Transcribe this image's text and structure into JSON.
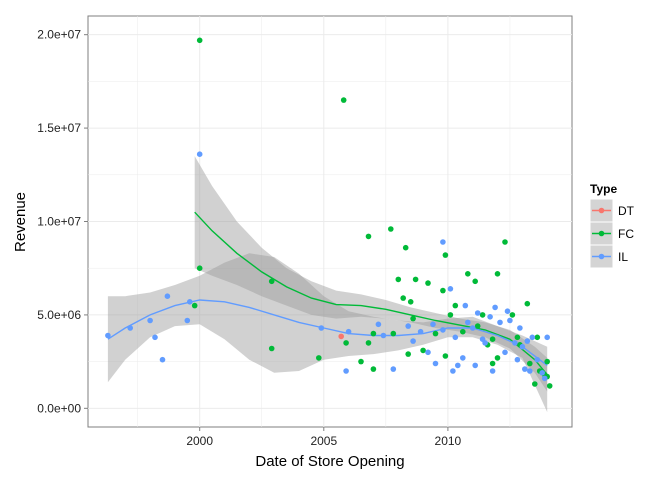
{
  "chart_data": {
    "type": "scatter",
    "title": "",
    "xlabel": "Date of Store Opening",
    "ylabel": "Revenue",
    "xlim": [
      1995.5,
      2015.0
    ],
    "ylim": [
      -1000000,
      21000000
    ],
    "x_ticks": [
      2000,
      2005,
      2010
    ],
    "x_tick_labels": [
      "2000",
      "2005",
      "2010"
    ],
    "y_ticks": [
      0,
      5000000,
      10000000,
      15000000,
      20000000
    ],
    "y_tick_labels": [
      "0.0e+00",
      "5.0e+06",
      "1.0e+07",
      "1.5e+07",
      "2.0e+07"
    ],
    "grid": true,
    "legend": {
      "title": "Type",
      "placement": "right"
    },
    "smoother": "loess with confidence band",
    "series": [
      {
        "name": "DT",
        "color": "#F8766D",
        "points": [
          [
            2005.7,
            3850000
          ]
        ],
        "trend": [],
        "band_upper": [],
        "band_lower": []
      },
      {
        "name": "FC",
        "color": "#00BA38",
        "points": [
          [
            2000.0,
            19700000
          ],
          [
            2000.0,
            7500000
          ],
          [
            1999.8,
            5500000
          ],
          [
            2002.9,
            6800000
          ],
          [
            2002.9,
            3200000
          ],
          [
            2004.8,
            2700000
          ],
          [
            2005.8,
            16500000
          ],
          [
            2005.9,
            3500000
          ],
          [
            2006.5,
            2500000
          ],
          [
            2006.8,
            9200000
          ],
          [
            2006.8,
            3500000
          ],
          [
            2007.0,
            4000000
          ],
          [
            2007.0,
            2100000
          ],
          [
            2007.7,
            9600000
          ],
          [
            2007.8,
            4000000
          ],
          [
            2008.0,
            6900000
          ],
          [
            2008.2,
            5900000
          ],
          [
            2008.3,
            8600000
          ],
          [
            2008.4,
            2900000
          ],
          [
            2008.5,
            5700000
          ],
          [
            2008.6,
            4800000
          ],
          [
            2008.7,
            6900000
          ],
          [
            2009.0,
            3100000
          ],
          [
            2009.2,
            6700000
          ],
          [
            2009.5,
            4000000
          ],
          [
            2009.8,
            6300000
          ],
          [
            2009.9,
            2800000
          ],
          [
            2009.9,
            8200000
          ],
          [
            2010.1,
            5000000
          ],
          [
            2010.3,
            5500000
          ],
          [
            2010.6,
            4100000
          ],
          [
            2010.8,
            7200000
          ],
          [
            2011.1,
            6800000
          ],
          [
            2011.2,
            4400000
          ],
          [
            2011.4,
            5000000
          ],
          [
            2011.6,
            3400000
          ],
          [
            2011.8,
            2400000
          ],
          [
            2011.8,
            3700000
          ],
          [
            2012.0,
            7200000
          ],
          [
            2012.0,
            2700000
          ],
          [
            2012.3,
            8900000
          ],
          [
            2012.6,
            5000000
          ],
          [
            2012.8,
            3800000
          ],
          [
            2012.9,
            3400000
          ],
          [
            2013.2,
            5600000
          ],
          [
            2013.3,
            2400000
          ],
          [
            2013.5,
            1300000
          ],
          [
            2013.6,
            3800000
          ],
          [
            2013.7,
            2000000
          ],
          [
            2013.9,
            1800000
          ],
          [
            2014.0,
            1700000
          ],
          [
            2014.1,
            1200000
          ],
          [
            2014.0,
            2500000
          ]
        ],
        "trend": [
          [
            1999.8,
            10500000
          ],
          [
            2000.5,
            9500000
          ],
          [
            2001.5,
            8300000
          ],
          [
            2002.5,
            7300000
          ],
          [
            2003.5,
            6500000
          ],
          [
            2004.5,
            5900000
          ],
          [
            2005.5,
            5550000
          ],
          [
            2006.5,
            5500000
          ],
          [
            2007.5,
            5300000
          ],
          [
            2008.5,
            5000000
          ],
          [
            2009.5,
            4700000
          ],
          [
            2010.5,
            4450000
          ],
          [
            2011.5,
            4200000
          ],
          [
            2012.5,
            3700000
          ],
          [
            2013.5,
            2600000
          ],
          [
            2014.0,
            1800000
          ]
        ],
        "band_upper": [
          [
            1999.8,
            13500000
          ],
          [
            2000.5,
            11900000
          ],
          [
            2001.5,
            10000000
          ],
          [
            2002.5,
            8600000
          ],
          [
            2003.5,
            7500000
          ],
          [
            2004.5,
            6800000
          ],
          [
            2005.5,
            6300000
          ],
          [
            2006.5,
            6100000
          ],
          [
            2007.5,
            5800000
          ],
          [
            2008.5,
            5400000
          ],
          [
            2009.5,
            5100000
          ],
          [
            2010.5,
            4800000
          ],
          [
            2011.5,
            4600000
          ],
          [
            2012.5,
            4200000
          ],
          [
            2013.5,
            3300000
          ],
          [
            2014.0,
            2700000
          ]
        ],
        "band_lower": [
          [
            1999.8,
            7500000
          ],
          [
            2000.5,
            7100000
          ],
          [
            2001.5,
            6600000
          ],
          [
            2002.5,
            6000000
          ],
          [
            2003.5,
            5500000
          ],
          [
            2004.5,
            5000000
          ],
          [
            2005.5,
            4800000
          ],
          [
            2006.5,
            4900000
          ],
          [
            2007.5,
            4800000
          ],
          [
            2008.5,
            4600000
          ],
          [
            2009.5,
            4300000
          ],
          [
            2010.5,
            4100000
          ],
          [
            2011.5,
            3800000
          ],
          [
            2012.5,
            3200000
          ],
          [
            2013.5,
            1900000
          ],
          [
            2014.0,
            900000
          ]
        ]
      },
      {
        "name": "IL",
        "color": "#619CFF",
        "points": [
          [
            1996.3,
            3900000
          ],
          [
            1997.2,
            4300000
          ],
          [
            1998.0,
            4700000
          ],
          [
            1998.2,
            3800000
          ],
          [
            1998.5,
            2600000
          ],
          [
            1998.7,
            6000000
          ],
          [
            1999.5,
            4700000
          ],
          [
            1999.6,
            5700000
          ],
          [
            2000.0,
            13600000
          ],
          [
            2004.9,
            4300000
          ],
          [
            2005.9,
            2000000
          ],
          [
            2006.0,
            4100000
          ],
          [
            2007.2,
            4500000
          ],
          [
            2007.4,
            3900000
          ],
          [
            2007.8,
            2100000
          ],
          [
            2008.4,
            4400000
          ],
          [
            2008.6,
            3600000
          ],
          [
            2008.9,
            4100000
          ],
          [
            2009.2,
            3000000
          ],
          [
            2009.4,
            4500000
          ],
          [
            2009.5,
            2400000
          ],
          [
            2009.8,
            4200000
          ],
          [
            2009.8,
            8900000
          ],
          [
            2010.1,
            6400000
          ],
          [
            2010.2,
            2000000
          ],
          [
            2010.3,
            3800000
          ],
          [
            2010.4,
            2300000
          ],
          [
            2010.6,
            2700000
          ],
          [
            2010.7,
            5500000
          ],
          [
            2010.8,
            4600000
          ],
          [
            2011.0,
            4300000
          ],
          [
            2011.1,
            2300000
          ],
          [
            2011.2,
            5100000
          ],
          [
            2011.4,
            3700000
          ],
          [
            2011.5,
            3500000
          ],
          [
            2011.7,
            4900000
          ],
          [
            2011.8,
            2000000
          ],
          [
            2011.9,
            5400000
          ],
          [
            2012.1,
            4600000
          ],
          [
            2012.3,
            3000000
          ],
          [
            2012.4,
            5200000
          ],
          [
            2012.5,
            4700000
          ],
          [
            2012.7,
            3500000
          ],
          [
            2012.8,
            2600000
          ],
          [
            2012.9,
            4300000
          ],
          [
            2013.0,
            3300000
          ],
          [
            2013.1,
            2100000
          ],
          [
            2013.2,
            3600000
          ],
          [
            2013.3,
            2000000
          ],
          [
            2013.4,
            3800000
          ],
          [
            2013.6,
            2600000
          ],
          [
            2013.8,
            1900000
          ],
          [
            2014.0,
            3800000
          ],
          [
            2013.9,
            1600000
          ]
        ],
        "trend": [
          [
            1996.3,
            3700000
          ],
          [
            1997.0,
            4300000
          ],
          [
            1998.0,
            5000000
          ],
          [
            1999.0,
            5500000
          ],
          [
            2000.0,
            5800000
          ],
          [
            2001.0,
            5700000
          ],
          [
            2002.0,
            5400000
          ],
          [
            2003.0,
            5000000
          ],
          [
            2004.0,
            4600000
          ],
          [
            2005.0,
            4300000
          ],
          [
            2006.0,
            4000000
          ],
          [
            2007.0,
            3900000
          ],
          [
            2008.0,
            3900000
          ],
          [
            2009.0,
            4000000
          ],
          [
            2010.0,
            4300000
          ],
          [
            2011.0,
            4300000
          ],
          [
            2012.0,
            3900000
          ],
          [
            2013.0,
            3300000
          ],
          [
            2014.0,
            2300000
          ]
        ],
        "band_upper": [
          [
            1996.3,
            6000000
          ],
          [
            1997.0,
            6000000
          ],
          [
            1998.0,
            6200000
          ],
          [
            1999.0,
            6600000
          ],
          [
            2000.0,
            7100000
          ],
          [
            2001.0,
            7800000
          ],
          [
            2002.0,
            8300000
          ],
          [
            2003.0,
            8100000
          ],
          [
            2004.0,
            7200000
          ],
          [
            2005.0,
            6000000
          ],
          [
            2006.0,
            5200000
          ],
          [
            2007.0,
            4900000
          ],
          [
            2008.0,
            4700000
          ],
          [
            2009.0,
            4600000
          ],
          [
            2010.0,
            4800000
          ],
          [
            2011.0,
            4900000
          ],
          [
            2012.0,
            4400000
          ],
          [
            2013.0,
            3900000
          ],
          [
            2014.0,
            3300000
          ]
        ],
        "band_lower": [
          [
            1996.3,
            1400000
          ],
          [
            1997.0,
            2600000
          ],
          [
            1998.0,
            3800000
          ],
          [
            1999.0,
            4400000
          ],
          [
            2000.0,
            4500000
          ],
          [
            2001.0,
            3700000
          ],
          [
            2002.0,
            2600000
          ],
          [
            2003.0,
            1900000
          ],
          [
            2004.0,
            2000000
          ],
          [
            2005.0,
            2600000
          ],
          [
            2006.0,
            2800000
          ],
          [
            2007.0,
            2900000
          ],
          [
            2008.0,
            3100000
          ],
          [
            2009.0,
            3400000
          ],
          [
            2010.0,
            3800000
          ],
          [
            2011.0,
            3800000
          ],
          [
            2012.0,
            3400000
          ],
          [
            2013.0,
            2700000
          ],
          [
            2014.0,
            -200000
          ]
        ]
      }
    ]
  }
}
